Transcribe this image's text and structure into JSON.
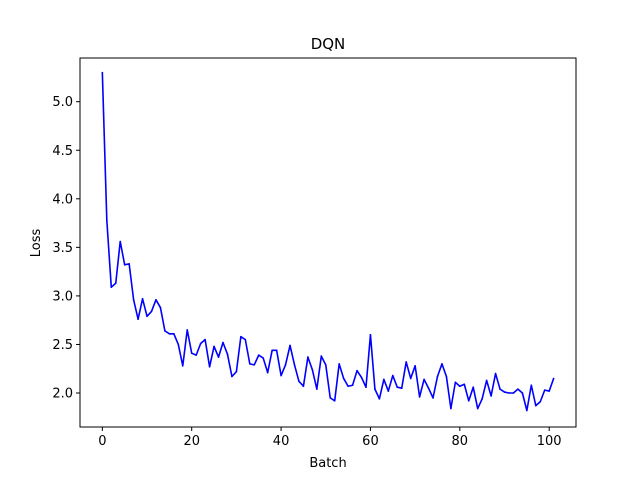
{
  "chart_data": {
    "type": "line",
    "title": "DQN",
    "xlabel": "Batch",
    "ylabel": "Loss",
    "xlim": [
      -5,
      106
    ],
    "ylim": [
      1.65,
      5.45
    ],
    "xticks": [
      0,
      20,
      40,
      60,
      80,
      100
    ],
    "xtick_labels": [
      "0",
      "20",
      "40",
      "60",
      "80",
      "100"
    ],
    "yticks": [
      2.0,
      2.5,
      3.0,
      3.5,
      4.0,
      4.5,
      5.0
    ],
    "ytick_labels": [
      "2.0",
      "2.5",
      "3.0",
      "3.5",
      "4.0",
      "4.5",
      "5.0"
    ],
    "grid": false,
    "series": [
      {
        "color": "#0000ff",
        "x": [
          0,
          1,
          2,
          3,
          4,
          5,
          6,
          7,
          8,
          9,
          10,
          11,
          12,
          13,
          14,
          15,
          16,
          17,
          18,
          19,
          20,
          21,
          22,
          23,
          24,
          25,
          26,
          27,
          28,
          29,
          30,
          31,
          32,
          33,
          34,
          35,
          36,
          37,
          38,
          39,
          40,
          41,
          42,
          43,
          44,
          45,
          46,
          47,
          48,
          49,
          50,
          51,
          52,
          53,
          54,
          55,
          56,
          57,
          58,
          59,
          60,
          61,
          62,
          63,
          64,
          65,
          66,
          67,
          68,
          69,
          70,
          71,
          72,
          73,
          74,
          75,
          76,
          77,
          78,
          79,
          80,
          81,
          82,
          83,
          84,
          85,
          86,
          87,
          88,
          89,
          90,
          91,
          92,
          93,
          94,
          95,
          96,
          97,
          98,
          99,
          100,
          101
        ],
        "values": [
          5.3,
          3.78,
          3.09,
          3.13,
          3.56,
          3.32,
          3.33,
          2.96,
          2.76,
          2.97,
          2.79,
          2.84,
          2.96,
          2.88,
          2.64,
          2.61,
          2.61,
          2.5,
          2.28,
          2.65,
          2.41,
          2.39,
          2.51,
          2.55,
          2.27,
          2.48,
          2.37,
          2.52,
          2.4,
          2.17,
          2.22,
          2.58,
          2.55,
          2.3,
          2.29,
          2.39,
          2.36,
          2.21,
          2.44,
          2.44,
          2.18,
          2.29,
          2.49,
          2.29,
          2.12,
          2.07,
          2.37,
          2.24,
          2.04,
          2.38,
          2.29,
          1.95,
          1.92,
          2.3,
          2.15,
          2.07,
          2.08,
          2.23,
          2.16,
          2.06,
          2.6,
          2.04,
          1.94,
          2.14,
          2.02,
          2.18,
          2.06,
          2.05,
          2.32,
          2.15,
          2.28,
          1.96,
          2.14,
          2.05,
          1.95,
          2.17,
          2.3,
          2.17,
          1.84,
          2.11,
          2.07,
          2.09,
          1.92,
          2.06,
          1.84,
          1.94,
          2.13,
          1.97,
          2.2,
          2.04,
          2.01,
          2.0,
          2.0,
          2.04,
          2.0,
          1.82,
          2.08,
          1.87,
          1.91,
          2.03,
          2.02,
          2.15
        ]
      }
    ]
  }
}
